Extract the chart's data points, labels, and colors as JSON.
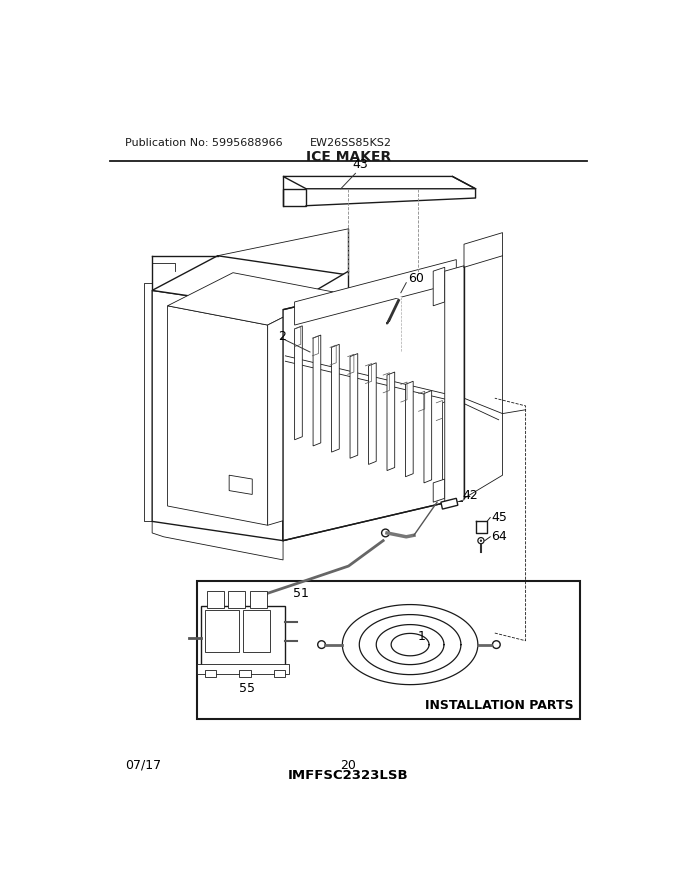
{
  "pub_no": "Publication No: 5995688966",
  "model": "EW26SS85KS2",
  "title": "ICE MAKER",
  "footer_left": "07/17",
  "footer_center": "20",
  "footer_image_id": "IMFFSC2323LSB",
  "install_parts_label": "INSTALLATION PARTS",
  "bg_color": "#ffffff",
  "text_color": "#000000",
  "line_color": "#1a1a1a",
  "lw_main": 1.0,
  "lw_thin": 0.6,
  "lw_leader": 0.7
}
